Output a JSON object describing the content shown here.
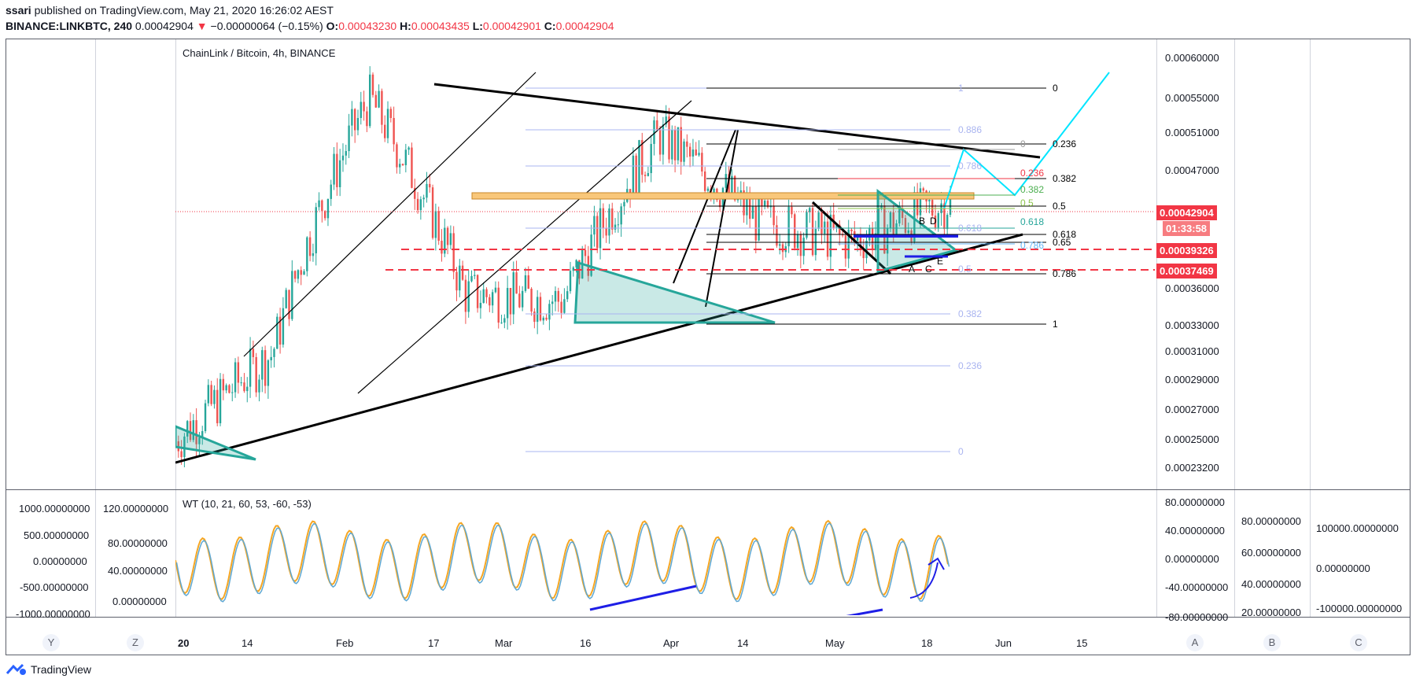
{
  "header": {
    "author": "ssari",
    "published_text": "published on TradingView.com, May 21, 2020 16:26:02 AEST",
    "symbol": "BINANCE:LINKBTC, 240",
    "last": "0.00042904",
    "change_arrow": "▼",
    "change": "−0.00000064 (−0.15%)",
    "o_label": "O:",
    "o_value": "0.00043230",
    "h_label": "H:",
    "h_value": "0.00043435",
    "l_label": "L:",
    "l_value": "0.00042901",
    "c_label": "C:",
    "c_value": "0.00042904"
  },
  "main_pane": {
    "title": "ChainLink / Bitcoin, 4h, BINANCE",
    "price_axis": [
      "0.00060000",
      "0.00055000",
      "0.00051000",
      "0.00047000",
      "0.00036000",
      "0.00033000",
      "0.00031000",
      "0.00029000",
      "0.00027000",
      "0.00025000",
      "0.00023200"
    ],
    "price_tags": [
      {
        "text": "0.00042904",
        "color": "#f23645"
      },
      {
        "text": "01:33:58",
        "color": "#f23645"
      },
      {
        "text": "0.00039326",
        "color": "#f23645"
      },
      {
        "text": "0.00037469",
        "color": "#f23645"
      }
    ],
    "fib_left": [
      "0.886",
      "0.786",
      "0.618",
      "0.382",
      "0.236",
      "0",
      "1",
      "0.5"
    ],
    "fib_right": [
      "0",
      "0.236",
      "0.382",
      "0.5",
      "0.618",
      "0.65",
      "0.786",
      "1"
    ],
    "fib_mid": [
      "0",
      "0.236",
      "0.382",
      "0.5",
      "0.618",
      "0.786"
    ],
    "pattern_labels": [
      "B",
      "D",
      "A",
      "C",
      "E"
    ]
  },
  "indicator_pane": {
    "title": "WT (10, 21, 60, 53, -60, -53)",
    "left_axis_1": [
      "1000.00000000",
      "500.00000000",
      "0.00000000",
      "-500.00000000",
      "-1000.00000000"
    ],
    "left_axis_2": [
      "120.00000000",
      "80.00000000",
      "40.00000000",
      "0.00000000"
    ],
    "right_axis_1": [
      "80.00000000",
      "40.00000000",
      "0.00000000",
      "-40.00000000",
      "-80.00000000"
    ],
    "right_axis_2": [
      "80.00000000",
      "60.00000000",
      "40.00000000",
      "20.00000000"
    ],
    "right_axis_3": [
      "100000.00000000",
      "0.00000000",
      "-100000.00000000"
    ]
  },
  "time_axis": [
    "20",
    "14",
    "Feb",
    "17",
    "Mar",
    "16",
    "Apr",
    "14",
    "May",
    "18",
    "Jun",
    "15"
  ],
  "scale_buttons": [
    "Y",
    "Z",
    "A",
    "B",
    "C"
  ],
  "footer": {
    "brand": "TradingView"
  },
  "chart_data": {
    "type": "line",
    "title": "ChainLink / Bitcoin, 4h, BINANCE",
    "xlabel": "",
    "ylabel": "",
    "ylim": [
      0.000232,
      0.0006
    ],
    "x": [
      "Jan 20",
      "Feb",
      "Mar",
      "Mar 16",
      "Apr",
      "Apr 14",
      "May",
      "May 18",
      "May 21"
    ],
    "series": [
      {
        "name": "",
        "values": [
          0.000245,
          0.0003,
          0.000545,
          0.000345,
          0.00034,
          0.0005,
          0.00041,
          0.00039,
          0.000429
        ]
      }
    ],
    "grid": false
  }
}
